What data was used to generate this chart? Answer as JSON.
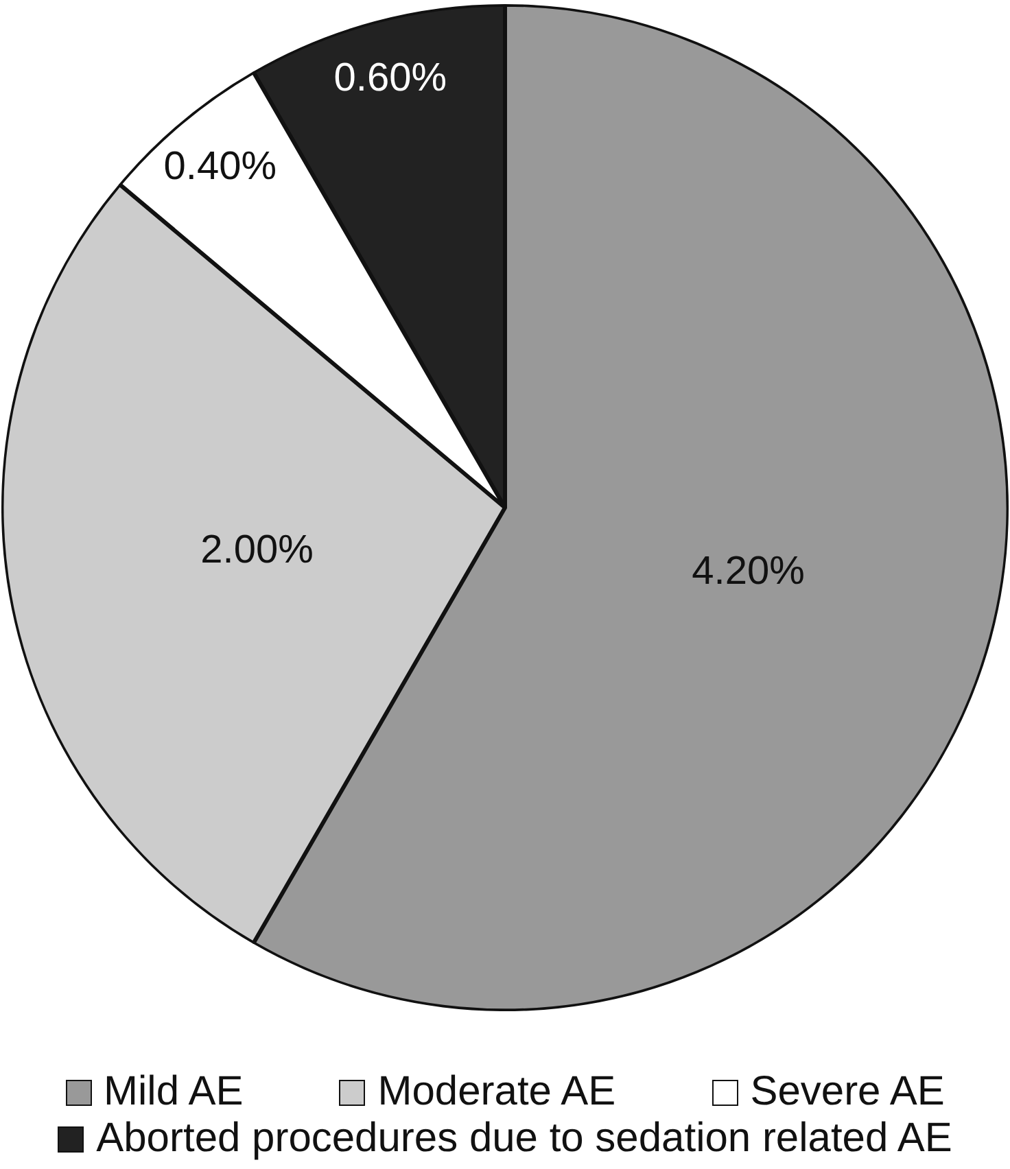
{
  "chart_data": {
    "type": "pie",
    "categories": [
      "Mild AE",
      "Moderate AE",
      "Severe AE",
      "Aborted procedures due to sedation related AE"
    ],
    "values": [
      4.2,
      2.0,
      0.4,
      0.6
    ],
    "colors": [
      "#999999",
      "#cccccc",
      "#ffffff",
      "#222222"
    ],
    "value_labels": [
      "4.20%",
      "2.00%",
      "0.40%",
      "0.60%"
    ],
    "legend": "bottom"
  }
}
